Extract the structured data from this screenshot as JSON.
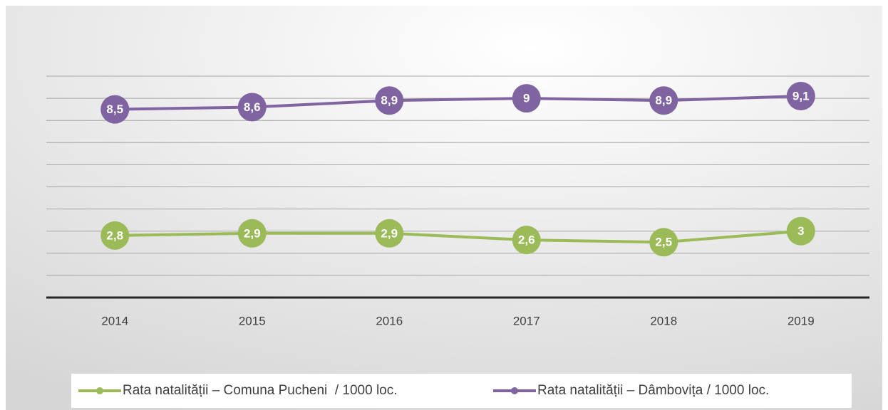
{
  "chart_data": {
    "type": "line",
    "categories": [
      "2014",
      "2015",
      "2016",
      "2017",
      "2018",
      "2019"
    ],
    "series": [
      {
        "name": "Rata natalității – Comuna Pucheni  / 1000 loc.",
        "color": "#9bbb59",
        "values": [
          2.8,
          2.9,
          2.9,
          2.6,
          2.5,
          3
        ],
        "value_labels": [
          "2,8",
          "2,9",
          "2,9",
          "2,6",
          "2,5",
          "3"
        ]
      },
      {
        "name": "Rata natalității – Dâmbovița / 1000 loc.",
        "color": "#8064a2",
        "values": [
          8.5,
          8.6,
          8.9,
          9,
          8.9,
          9.1
        ],
        "value_labels": [
          "8,5",
          "8,6",
          "8,9",
          "9",
          "8,9",
          "9,1"
        ]
      }
    ],
    "ylim": [
      0,
      10
    ],
    "yticks": [
      0,
      1,
      2,
      3,
      4,
      5,
      6,
      7,
      8,
      9,
      10
    ],
    "grid": true,
    "legend": "bottom"
  }
}
